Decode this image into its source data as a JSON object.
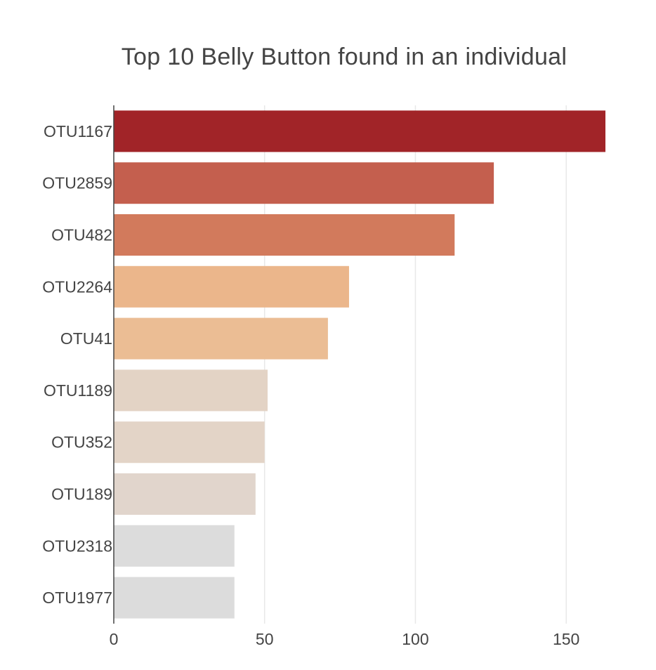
{
  "chart_data": {
    "type": "bar",
    "orientation": "horizontal",
    "title": "Top 10 Belly Button found in an individual",
    "xlabel": "",
    "ylabel": "",
    "xlim": [
      0,
      163
    ],
    "x_ticks": [
      0,
      50,
      100,
      150
    ],
    "grid": true,
    "categories": [
      "OTU1167",
      "OTU2859",
      "OTU482",
      "OTU2264",
      "OTU41",
      "OTU1189",
      "OTU352",
      "OTU189",
      "OTU2318",
      "OTU1977"
    ],
    "values": [
      163,
      126,
      113,
      78,
      71,
      51,
      50,
      47,
      40,
      40
    ],
    "colors": [
      "#a12428",
      "#c45f4e",
      "#d27a5c",
      "#ebb68b",
      "#ebbd94",
      "#e3d3c5",
      "#e3d4c7",
      "#e1d5cc",
      "#dcdcdc",
      "#dcdcdc"
    ]
  }
}
